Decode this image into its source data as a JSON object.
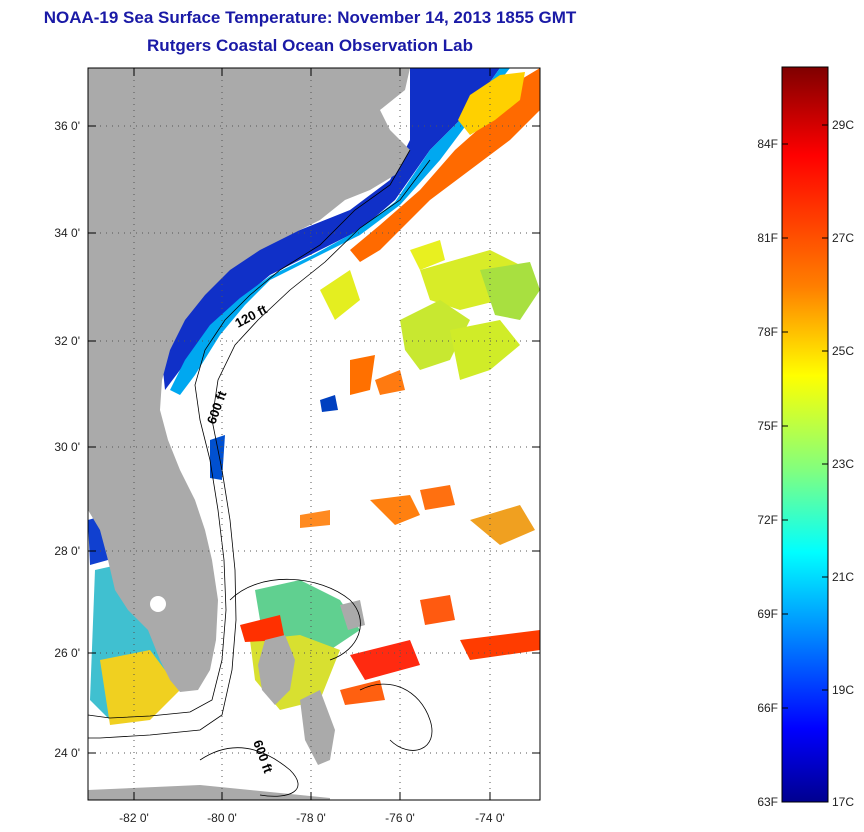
{
  "title_line1": "NOAA-19 Sea Surface Temperature:  November 14, 2013 1855 GMT",
  "title_line2": "Rutgers Coastal Ocean Observation Lab",
  "lat_ticks": [
    "36 0'",
    "34 0'",
    "32 0'",
    "30 0'",
    "28 0'",
    "26 0'",
    "24 0'"
  ],
  "lon_ticks": [
    "-82 0'",
    "-80 0'",
    "-78 0'",
    "-76 0'",
    "-74 0'"
  ],
  "contours": [
    "120 ft",
    "600 ft",
    "600 ft"
  ],
  "colorbar": {
    "fahrenheit": [
      "84F",
      "81F",
      "78F",
      "75F",
      "72F",
      "69F",
      "66F",
      "63F"
    ],
    "celsius": [
      "29C",
      "27C",
      "25C",
      "23C",
      "21C",
      "19C",
      "17C"
    ],
    "colors": [
      "#7f0000",
      "#ff0000",
      "#ff8000",
      "#ffff00",
      "#80ff80",
      "#00ffff",
      "#0080ff",
      "#0000ff",
      "#00008f"
    ]
  },
  "colors": {
    "land": "#aaaaaa",
    "title": "#1a1aa6",
    "grid": "#555555"
  }
}
